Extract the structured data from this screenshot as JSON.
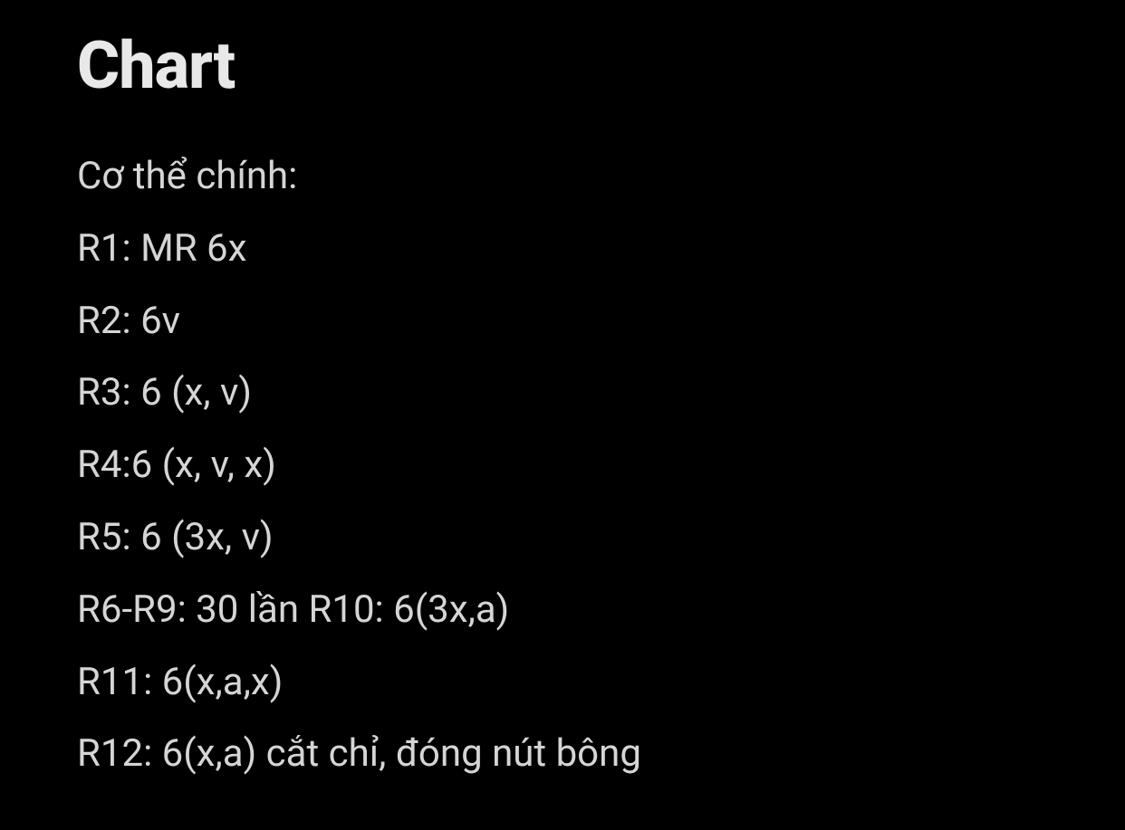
{
  "heading": "Chart",
  "lines": [
    "Cơ thể chính:",
    "R1: MR 6x",
    "R2: 6v",
    "R3: 6 (x, v)",
    "R4:6 (x, v, x)",
    "R5: 6 (3x, v)",
    "R6-R9: 30 lần R10: 6(3x,a)",
    "R11: 6(x,a,x)",
    "R12: 6(x,a) cắt chỉ, đóng nút bông"
  ],
  "colors": {
    "background": "#000000",
    "heading_text": "#e8e8e8",
    "body_text": "#d5d5d5"
  },
  "typography": {
    "heading_fontsize": 72,
    "heading_weight": 800,
    "body_fontsize": 42,
    "body_weight": 400,
    "body_lineheight": 1.9
  }
}
